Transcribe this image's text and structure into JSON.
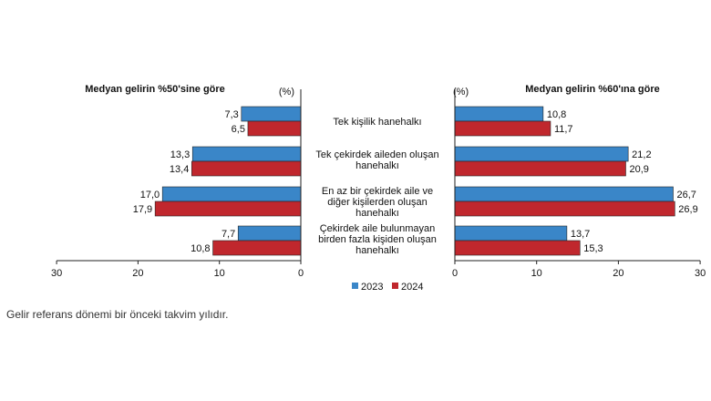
{
  "chart_data": [
    {
      "type": "bar",
      "orientation": "horizontal",
      "title": "Medyan gelirin %50'sine göre",
      "unit": "(%)",
      "categories": [
        "Tek kişilik hanehalkı",
        "Tek çekirdek aileden oluşan hanehalkı",
        "En az bir çekirdek aile ve diğer kişilerden oluşan hanehalkı",
        "Çekirdek aile bulunmayan birden fazla kişiden oluşan hanehalkı"
      ],
      "series": [
        {
          "name": "2023",
          "values": [
            7.3,
            13.3,
            17.0,
            7.7
          ],
          "labels": [
            "7,3",
            "13,3",
            "17,0",
            "7,7"
          ]
        },
        {
          "name": "2024",
          "values": [
            6.5,
            13.4,
            17.9,
            10.8
          ],
          "labels": [
            "6,5",
            "13,4",
            "17,9",
            "10,8"
          ]
        }
      ],
      "xlim": [
        30,
        0
      ],
      "ticks": [
        "30",
        "20",
        "10",
        "0"
      ]
    },
    {
      "type": "bar",
      "orientation": "horizontal",
      "title": "Medyan gelirin %60'ına göre",
      "unit": "(%)",
      "categories": [
        "Tek kişilik hanehalkı",
        "Tek çekirdek aileden oluşan hanehalkı",
        "En az bir çekirdek aile ve diğer kişilerden oluşan hanehalkı",
        "Çekirdek aile bulunmayan birden fazla kişiden oluşan hanehalkı"
      ],
      "series": [
        {
          "name": "2023",
          "values": [
            10.8,
            21.2,
            26.7,
            13.7
          ],
          "labels": [
            "10,8",
            "21,2",
            "26,7",
            "13,7"
          ]
        },
        {
          "name": "2024",
          "values": [
            11.7,
            20.9,
            26.9,
            15.3
          ],
          "labels": [
            "11,7",
            "20,9",
            "26,9",
            "15,3"
          ]
        }
      ],
      "xlim": [
        0,
        30
      ],
      "ticks": [
        "0",
        "10",
        "20",
        "30"
      ]
    }
  ],
  "category_lines": [
    [
      "Tek kişilik hanehalkı"
    ],
    [
      "Tek çekirdek aileden oluşan",
      "hanehalkı"
    ],
    [
      "En az bir çekirdek aile ve",
      "diğer kişilerden oluşan",
      "hanehalkı"
    ],
    [
      "Çekirdek aile bulunmayan",
      "birden fazla kişiden oluşan",
      "hanehalkı"
    ]
  ],
  "legend": [
    {
      "label": "2023",
      "color": "#3a86c8"
    },
    {
      "label": "2024",
      "color": "#c0272d"
    }
  ],
  "colors": {
    "2023": "#3a86c8",
    "2024": "#c0272d"
  },
  "footnote": "Gelir referans dönemi bir önceki takvim yılıdır."
}
